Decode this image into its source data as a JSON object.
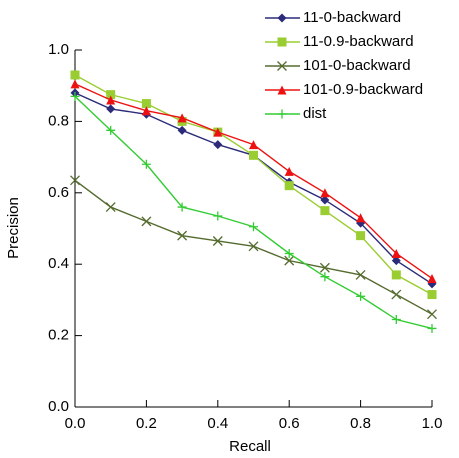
{
  "chart_data": {
    "type": "line",
    "xlabel": "Recall",
    "ylabel": "Precision",
    "x": [
      0,
      0.1,
      0.2,
      0.3,
      0.4,
      0.5,
      0.6,
      0.7,
      0.8,
      0.9,
      1.0
    ],
    "xlim": [
      0,
      1
    ],
    "ylim": [
      0,
      1
    ],
    "xticks": [
      {
        "value": 0,
        "label": "0.0"
      },
      {
        "value": 0.2,
        "label": "0.2"
      },
      {
        "value": 0.4,
        "label": "0.4"
      },
      {
        "value": 0.6,
        "label": "0.6"
      },
      {
        "value": 0.8,
        "label": "0.8"
      },
      {
        "value": 1,
        "label": "1.0"
      }
    ],
    "yticks": [
      {
        "value": 0,
        "label": "0.0"
      },
      {
        "value": 0.2,
        "label": "0.2"
      },
      {
        "value": 0.4,
        "label": "0.4"
      },
      {
        "value": 0.6,
        "label": "0.6"
      },
      {
        "value": 0.8,
        "label": "0.8"
      },
      {
        "value": 1,
        "label": "1.0"
      }
    ],
    "legend": "top-right",
    "series": [
      {
        "name": "11-0-backward",
        "color": "#2b2b7a",
        "marker": "diamond",
        "values": [
          0.88,
          0.835,
          0.82,
          0.775,
          0.735,
          0.705,
          0.63,
          0.58,
          0.515,
          0.41,
          0.345
        ]
      },
      {
        "name": "11-0.9-backward",
        "color": "#9acd32",
        "marker": "square",
        "values": [
          0.93,
          0.875,
          0.85,
          0.8,
          0.77,
          0.705,
          0.62,
          0.55,
          0.48,
          0.37,
          0.315
        ]
      },
      {
        "name": "101-0-backward",
        "color": "#556b2f",
        "marker": "x",
        "values": [
          0.635,
          0.56,
          0.52,
          0.48,
          0.465,
          0.45,
          0.41,
          0.39,
          0.37,
          0.315,
          0.26
        ]
      },
      {
        "name": "101-0.9-backward",
        "color": "#ee1111",
        "marker": "triangle",
        "values": [
          0.905,
          0.86,
          0.83,
          0.81,
          0.77,
          0.735,
          0.66,
          0.6,
          0.53,
          0.43,
          0.36
        ]
      },
      {
        "name": "dist",
        "color": "#33cc33",
        "marker": "plus",
        "values": [
          0.87,
          0.775,
          0.68,
          0.56,
          0.535,
          0.505,
          0.43,
          0.365,
          0.31,
          0.245,
          0.22
        ]
      }
    ]
  }
}
